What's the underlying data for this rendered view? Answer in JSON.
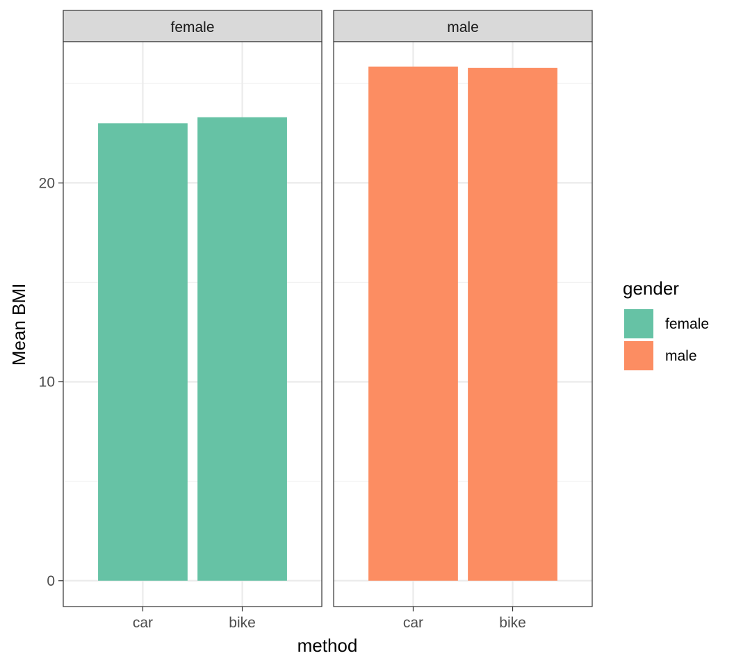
{
  "chart_data": {
    "type": "bar",
    "facet_by": "gender",
    "panels": [
      {
        "strip_label": "female",
        "categories": [
          "car",
          "bike"
        ],
        "values": [
          23.0,
          23.3
        ],
        "color": "#66C2A5"
      },
      {
        "strip_label": "male",
        "categories": [
          "car",
          "bike"
        ],
        "values": [
          25.85,
          25.78
        ],
        "color": "#FC8D62"
      }
    ],
    "xlabel": "method",
    "ylabel": "Mean BMI",
    "y_ticks": [
      0,
      10,
      20
    ],
    "y_tick_labels": [
      "0",
      "10",
      "20"
    ],
    "ylim": [
      -1.3,
      27.1
    ],
    "grid": true,
    "legend": {
      "title": "gender",
      "position": "right",
      "entries": [
        {
          "label": "female",
          "color": "#66C2A5"
        },
        {
          "label": "male",
          "color": "#FC8D62"
        }
      ]
    }
  }
}
